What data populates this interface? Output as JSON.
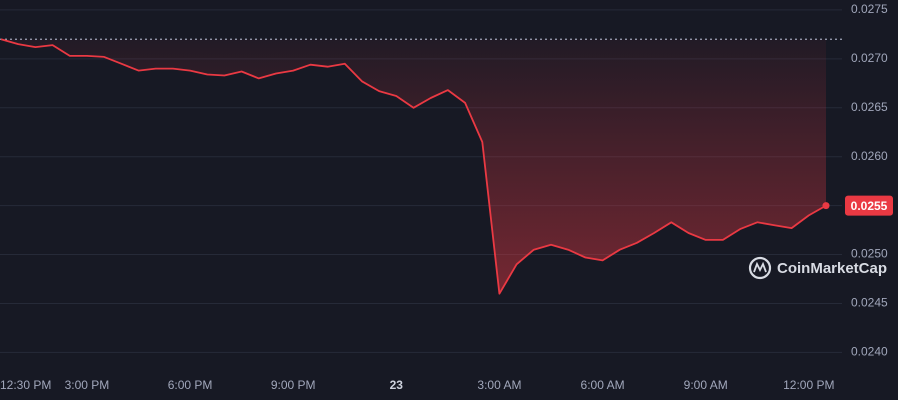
{
  "chart_data": {
    "type": "line",
    "watermark": "CoinMarketCap",
    "categories": [
      "12:30 PM",
      null,
      null,
      null,
      null,
      "3:00 PM",
      null,
      null,
      null,
      null,
      null,
      "6:00 PM",
      null,
      null,
      null,
      null,
      null,
      "9:00 PM",
      null,
      null,
      null,
      null,
      null,
      "23",
      null,
      null,
      null,
      null,
      null,
      "3:00 AM",
      null,
      null,
      null,
      null,
      null,
      "6:00 AM",
      null,
      null,
      null,
      null,
      null,
      "9:00 AM",
      null,
      null,
      null,
      null,
      null,
      "12:00 PM",
      null
    ],
    "series": [
      {
        "color": "#ea3943",
        "values": [
          0.0272,
          0.02715,
          0.02712,
          0.02714,
          0.02703,
          0.02703,
          0.02702,
          0.02695,
          0.02688,
          0.0269,
          0.0269,
          0.02688,
          0.02684,
          0.02683,
          0.02687,
          0.0268,
          0.02685,
          0.02688,
          0.02694,
          0.02692,
          0.02695,
          0.02677,
          0.02667,
          0.02662,
          0.0265,
          0.0266,
          0.02668,
          0.02655,
          0.02615,
          0.0246,
          0.0249,
          0.02505,
          0.0251,
          0.02505,
          0.02497,
          0.02494,
          0.02505,
          0.02512,
          0.02522,
          0.02533,
          0.02522,
          0.02515,
          0.02515,
          0.02526,
          0.02533,
          0.0253,
          0.02527,
          0.0254,
          0.0255
        ]
      }
    ],
    "reference_line": 0.0272,
    "ylim": [
      0.0238,
      0.02755
    ],
    "yticks": [
      {
        "value": 0.024,
        "label": "0.0240"
      },
      0.0245,
      {
        "value": 0.025,
        "label": "0.0250"
      },
      0.0255,
      {
        "value": 0.026,
        "label": "0.0260"
      },
      0.0265,
      {
        "value": 0.027,
        "label": "0.0270"
      },
      0.0275
    ],
    "grid": true
  }
}
